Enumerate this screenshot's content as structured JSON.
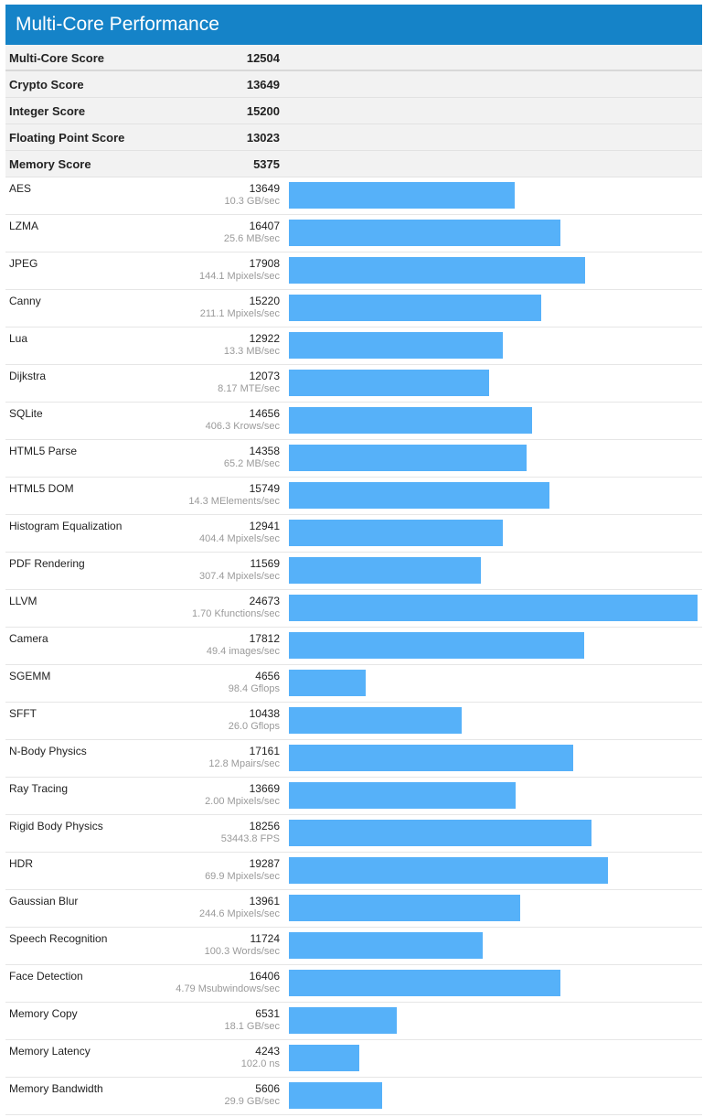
{
  "title": "Multi-Core Performance",
  "colors": {
    "header": "#1583c8",
    "bar": "#56b1f9"
  },
  "summary": [
    {
      "label": "Multi-Core Score",
      "value": "12504"
    },
    {
      "label": "Crypto Score",
      "value": "13649"
    },
    {
      "label": "Integer Score",
      "value": "15200"
    },
    {
      "label": "Floating Point Score",
      "value": "13023"
    },
    {
      "label": "Memory Score",
      "value": "5375"
    }
  ],
  "chart_data": {
    "type": "bar",
    "orientation": "horizontal",
    "title": "Multi-Core Performance",
    "categories": [
      "AES",
      "LZMA",
      "JPEG",
      "Canny",
      "Lua",
      "Dijkstra",
      "SQLite",
      "HTML5 Parse",
      "HTML5 DOM",
      "Histogram Equalization",
      "PDF Rendering",
      "LLVM",
      "Camera",
      "SGEMM",
      "SFFT",
      "N-Body Physics",
      "Ray Tracing",
      "Rigid Body Physics",
      "HDR",
      "Gaussian Blur",
      "Speech Recognition",
      "Face Detection",
      "Memory Copy",
      "Memory Latency",
      "Memory Bandwidth"
    ],
    "values": [
      13649,
      16407,
      17908,
      15220,
      12922,
      12073,
      14656,
      14358,
      15749,
      12941,
      11569,
      24673,
      17812,
      4656,
      10438,
      17161,
      13669,
      18256,
      19287,
      13961,
      11724,
      16406,
      6531,
      4243,
      5606
    ],
    "rates": [
      "10.3 GB/sec",
      "25.6 MB/sec",
      "144.1 Mpixels/sec",
      "211.1 Mpixels/sec",
      "13.3 MB/sec",
      "8.17 MTE/sec",
      "406.3 Krows/sec",
      "65.2 MB/sec",
      "14.3 MElements/sec",
      "404.4 Mpixels/sec",
      "307.4 Mpixels/sec",
      "1.70 Kfunctions/sec",
      "49.4 images/sec",
      "98.4 Gflops",
      "26.0 Gflops",
      "12.8 Mpairs/sec",
      "2.00 Mpixels/sec",
      "53443.8 FPS",
      "69.9 Mpixels/sec",
      "244.6 Mpixels/sec",
      "100.3 Words/sec",
      "4.79 Msubwindows/sec",
      "18.1 GB/sec",
      "102.0 ns",
      "29.9 GB/sec"
    ],
    "xlim": [
      0,
      24673
    ],
    "grid": false,
    "legend": "none"
  }
}
